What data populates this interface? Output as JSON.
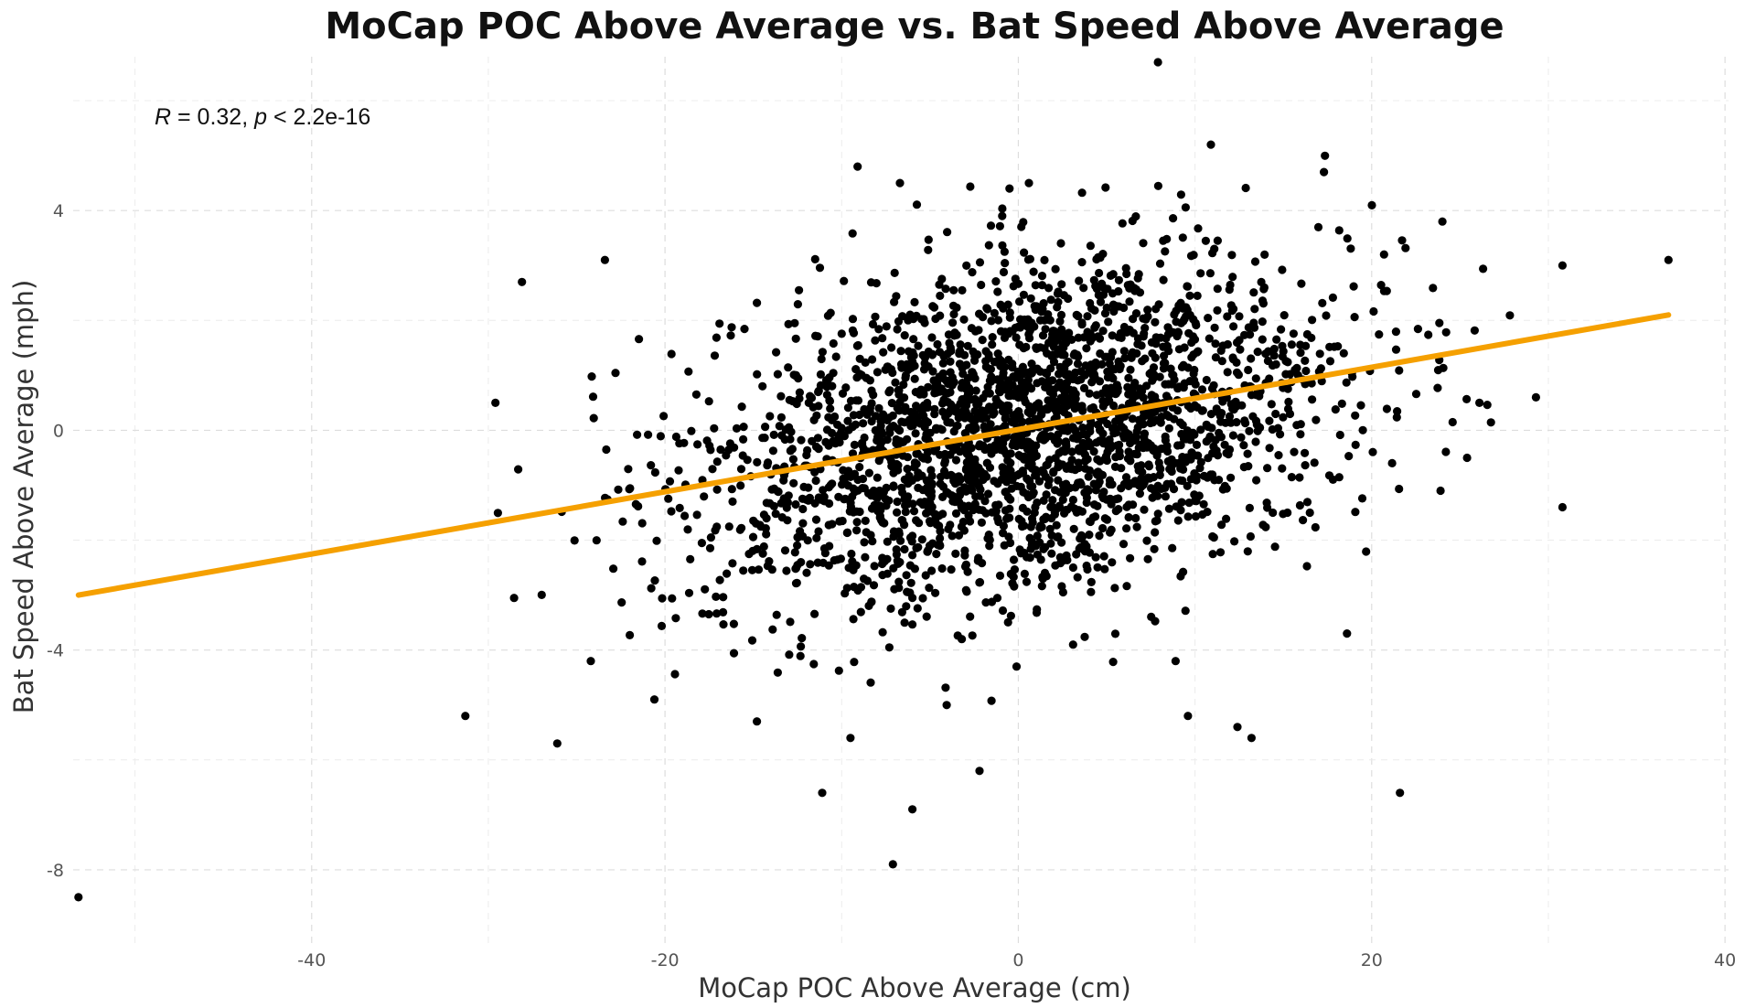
{
  "chart_data": {
    "type": "scatter",
    "title": "MoCap POC Above Average vs. Bat Speed Above Average",
    "xlabel": "MoCap POC Above Average (cm)",
    "ylabel": "Bat Speed Above Average (mph)",
    "xlim": [
      -53.5,
      40.2
    ],
    "ylim": [
      -9.4,
      6.8
    ],
    "x_ticks": [
      -40,
      -20,
      0,
      20,
      40
    ],
    "y_ticks": [
      -8,
      -4,
      0,
      4
    ],
    "grid": true,
    "grid_style": "dashed",
    "legend": "none",
    "annotation": {
      "r_symbol": "R",
      "r_value": " = 0.32, ",
      "p_symbol": "p",
      "p_value": " < 2.2e-16"
    },
    "point_color": "#000000",
    "trend_line": {
      "color": "#f5a000",
      "x": [
        -53.2,
        36.8
      ],
      "y": [
        -3.0,
        2.1
      ]
    },
    "highlighted_points": [
      [
        -53.2,
        -8.5
      ],
      [
        -31.3,
        -5.2
      ],
      [
        -29.6,
        0.5
      ],
      [
        -28.1,
        2.7
      ],
      [
        -26.1,
        -5.7
      ],
      [
        -23.4,
        3.1
      ],
      [
        -24.2,
        -4.2
      ],
      [
        -20.6,
        -4.9
      ],
      [
        -11.1,
        -6.6
      ],
      [
        -9.1,
        4.8
      ],
      [
        -7.1,
        -7.9
      ],
      [
        -6.0,
        -6.9
      ],
      [
        -2.2,
        -6.2
      ],
      [
        -6.7,
        4.5
      ],
      [
        -0.5,
        4.4
      ],
      [
        0.6,
        4.5
      ],
      [
        7.9,
        6.7
      ],
      [
        10.9,
        5.2
      ],
      [
        17.3,
        4.7
      ],
      [
        24.0,
        3.8
      ],
      [
        30.8,
        3.0
      ],
      [
        36.8,
        3.1
      ],
      [
        29.3,
        0.6
      ],
      [
        30.8,
        -1.4
      ],
      [
        21.6,
        -6.6
      ],
      [
        18.6,
        -3.7
      ],
      [
        12.4,
        -5.4
      ],
      [
        13.2,
        -5.6
      ],
      [
        9.6,
        -5.2
      ],
      [
        8.9,
        -4.2
      ],
      [
        -14.8,
        -5.3
      ],
      [
        -9.5,
        -5.6
      ],
      [
        -3.2,
        -3.8
      ],
      [
        -0.1,
        -4.3
      ],
      [
        3.1,
        -3.9
      ],
      [
        16.5,
        -1.5
      ],
      [
        20.7,
        3.2
      ],
      [
        23.9,
        -1.1
      ],
      [
        25.4,
        -0.5
      ],
      [
        26.1,
        0.5
      ]
    ],
    "cluster": {
      "count": 2600,
      "x_mean": 0.3,
      "x_sd": 9.0,
      "y_mean": 0.0,
      "y_sd": 1.55,
      "r": 0.32
    }
  }
}
